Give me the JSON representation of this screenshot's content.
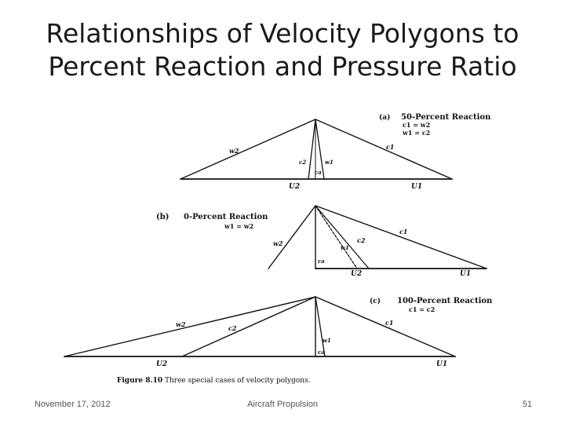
{
  "slide": {
    "title_line1": "Relationships of Velocity Polygons to",
    "title_line2": "Percent Reaction and Pressure Ratio"
  },
  "figure": {
    "a": {
      "tag": "(a)",
      "heading": "50-Percent Reaction",
      "eq1": "c1 = w2",
      "eq2": "w1 = c2",
      "labels": {
        "w2": "w2",
        "c1": "c1",
        "c2": "c2",
        "w1": "w1",
        "ca": "ca",
        "u2": "U2",
        "u1": "U1"
      }
    },
    "b": {
      "tag": "(b)",
      "heading": "0-Percent Reaction",
      "eq1": "w1 = w2",
      "labels": {
        "w2": "w2",
        "c2": "c2",
        "c1": "c1",
        "w1": "w1",
        "ca": "ca",
        "u2": "U2",
        "u1": "U1"
      }
    },
    "c": {
      "tag": "(c)",
      "heading": "100-Percent Reaction",
      "eq1": "c1 = c2",
      "labels": {
        "w2": "w2",
        "c2": "c2",
        "c1": "c1",
        "w1": "w1",
        "ca": "ca",
        "u2": "U2",
        "u1": "U1"
      }
    },
    "caption_label": "Figure 8.10",
    "caption_text": "Three special cases of velocity polygons."
  },
  "footer": {
    "date": "November 17, 2012",
    "course": "Aircraft Propulsion",
    "page": "51"
  }
}
